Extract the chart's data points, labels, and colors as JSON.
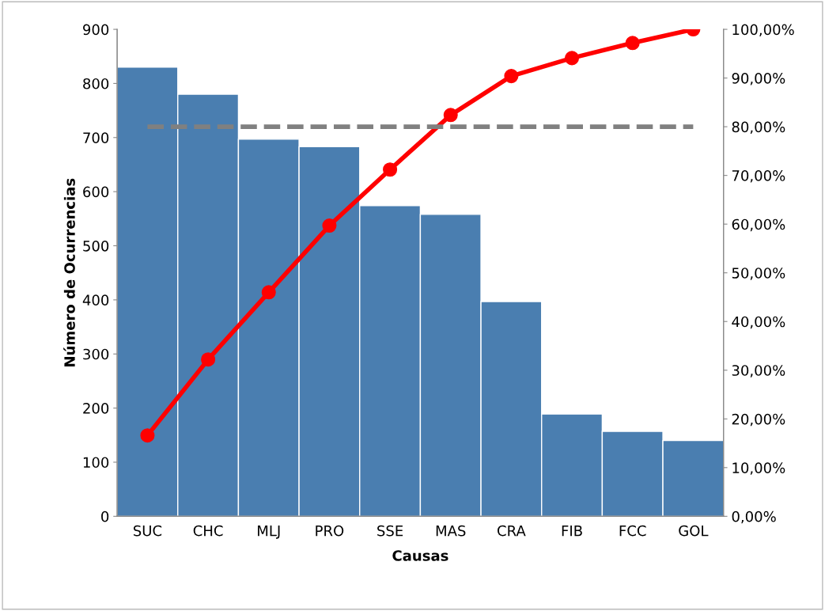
{
  "chart_data": {
    "type": "bar",
    "xlabel": "Causas",
    "ylabel": "Número de Ocurrencias",
    "categories": [
      "SUC",
      "CHC",
      "MLJ",
      "PRO",
      "SSE",
      "MAS",
      "CRA",
      "FIB",
      "FCC",
      "GOL"
    ],
    "series": [
      {
        "color": "#4a7eb0",
        "values": [
          830,
          780,
          697,
          683,
          574,
          558,
          397,
          189,
          157,
          140
        ]
      },
      {
        "type": "line",
        "axis": "y2",
        "color": "#ff0000",
        "marker": "circle",
        "line_style": "solid",
        "values": [
          16.6,
          32.2,
          46.0,
          59.7,
          71.2,
          82.4,
          90.4,
          94.1,
          97.2,
          100
        ]
      },
      {
        "type": "line",
        "axis": "y2",
        "color": "#808080",
        "marker": "none",
        "line_style": "dashed",
        "values": [
          80,
          80,
          80,
          80,
          80,
          80,
          80,
          80,
          80,
          80
        ]
      }
    ],
    "ylim": [
      0,
      900
    ],
    "yticks": [
      0,
      100,
      200,
      300,
      400,
      500,
      600,
      700,
      800,
      900
    ],
    "y2lim": [
      0,
      100
    ],
    "y2ticks": [
      {
        "value": 0,
        "label": "0,00%"
      },
      {
        "value": 10,
        "label": "10,00%"
      },
      {
        "value": 20,
        "label": "20,00%"
      },
      {
        "value": 30,
        "label": "30,00%"
      },
      {
        "value": 40,
        "label": "40,00%"
      },
      {
        "value": 50,
        "label": "50,00%"
      },
      {
        "value": 60,
        "label": "60,00%"
      },
      {
        "value": 70,
        "label": "70,00%"
      },
      {
        "value": 80,
        "label": "80,00%"
      },
      {
        "value": 90,
        "label": "90,00%"
      },
      {
        "value": 100,
        "label": "100,00%"
      }
    ],
    "grid": false,
    "legend": false
  }
}
